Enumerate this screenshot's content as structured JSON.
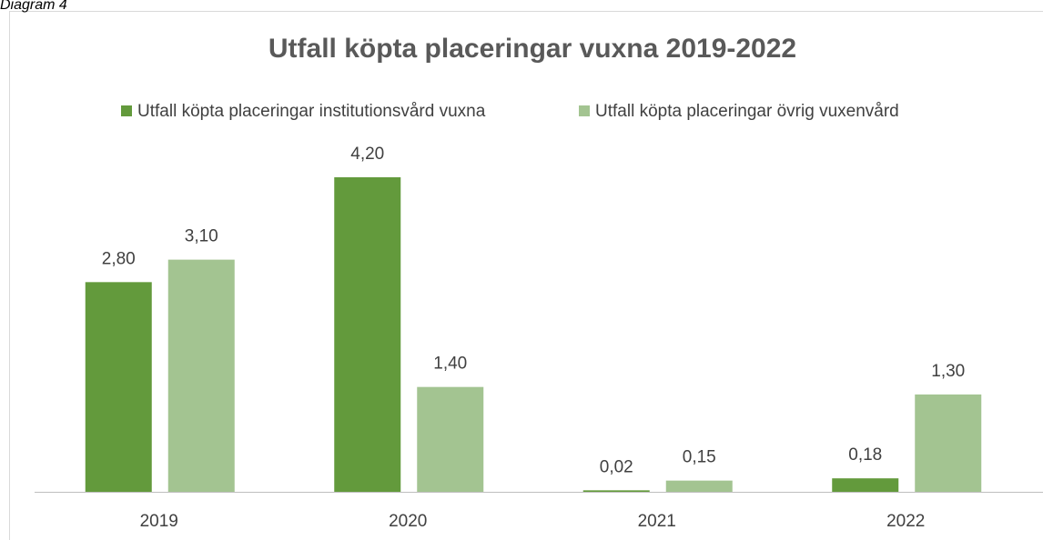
{
  "caption": "Diagram 4",
  "chart_data": {
    "type": "bar",
    "title": "Utfall köpta placeringar vuxna 2019-2022",
    "categories": [
      "2019",
      "2020",
      "2021",
      "2022"
    ],
    "series": [
      {
        "name": "Utfall köpta placeringar institutionsvård vuxna",
        "color": "#639a3c",
        "values": [
          2.8,
          4.2,
          0.02,
          0.18
        ],
        "value_labels": [
          "2,80",
          "4,20",
          "0,02",
          "0,18"
        ]
      },
      {
        "name": "Utfall köpta placeringar övrig vuxenvård",
        "color": "#a3c491",
        "values": [
          3.1,
          1.4,
          0.15,
          1.3
        ],
        "value_labels": [
          "3,10",
          "1,40",
          "0,15",
          "1,30"
        ]
      }
    ],
    "legend": "top"
  }
}
